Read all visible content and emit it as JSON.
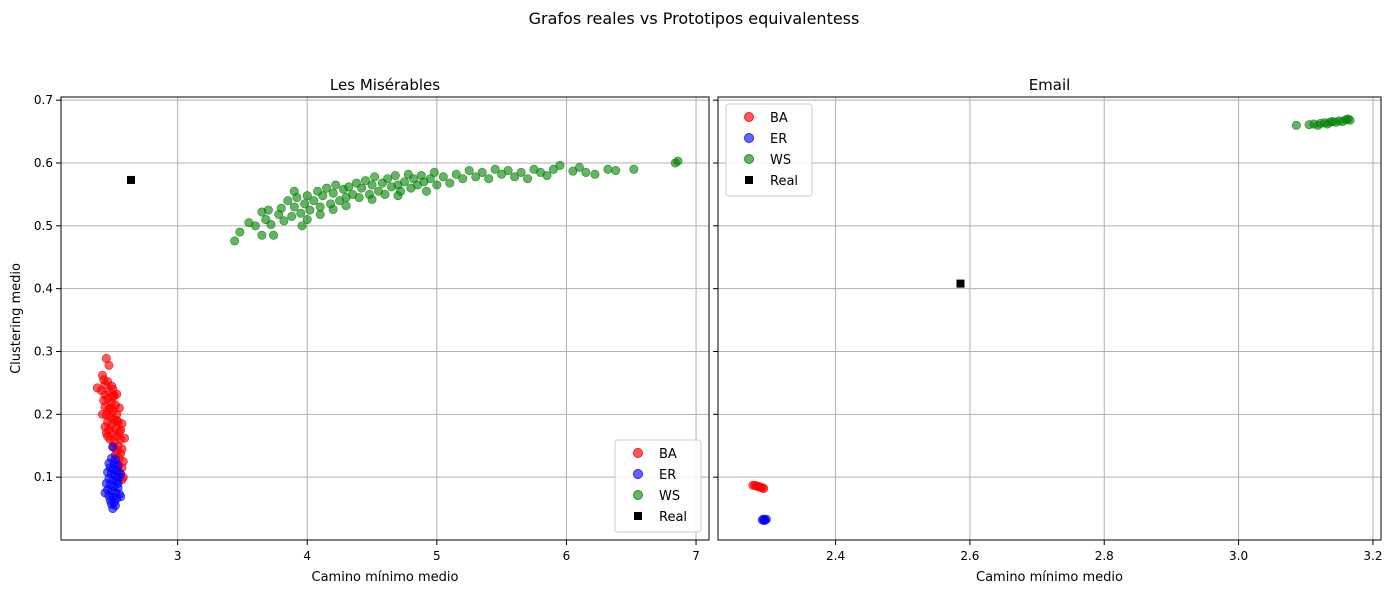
{
  "figure": {
    "suptitle": "Grafos reales vs Prototipos equivalentess"
  },
  "chart_data": [
    {
      "type": "scatter",
      "title": "Les Misérables",
      "xlabel": "Camino mínimo medio",
      "ylabel": "Clustering medio",
      "xlim": [
        2.1,
        7.1
      ],
      "ylim": [
        0.0,
        0.705
      ],
      "xticks": [
        3,
        4,
        5,
        6,
        7
      ],
      "yticks": [
        0.1,
        0.2,
        0.3,
        0.4,
        0.5,
        0.6,
        0.7
      ],
      "grid": true,
      "legend_position": "lower-right",
      "legend": [
        "BA",
        "ER",
        "WS",
        "Real"
      ],
      "series": [
        {
          "name": "BA",
          "color": "#ff0000",
          "marker": "circle",
          "alpha": 0.65,
          "points": [
            [
              2.38,
              0.242
            ],
            [
              2.42,
              0.262
            ],
            [
              2.45,
              0.289
            ],
            [
              2.47,
              0.278
            ],
            [
              2.43,
              0.255
            ],
            [
              2.44,
              0.247
            ],
            [
              2.46,
              0.252
            ],
            [
              2.5,
              0.24
            ],
            [
              2.53,
              0.232
            ],
            [
              2.41,
              0.238
            ],
            [
              2.44,
              0.231
            ],
            [
              2.47,
              0.236
            ],
            [
              2.5,
              0.228
            ],
            [
              2.43,
              0.222
            ],
            [
              2.46,
              0.225
            ],
            [
              2.49,
              0.219
            ],
            [
              2.52,
              0.215
            ],
            [
              2.55,
              0.21
            ],
            [
              2.44,
              0.212
            ],
            [
              2.47,
              0.208
            ],
            [
              2.5,
              0.205
            ],
            [
              2.53,
              0.2
            ],
            [
              2.45,
              0.199
            ],
            [
              2.48,
              0.195
            ],
            [
              2.51,
              0.192
            ],
            [
              2.54,
              0.188
            ],
            [
              2.57,
              0.185
            ],
            [
              2.46,
              0.188
            ],
            [
              2.49,
              0.182
            ],
            [
              2.52,
              0.178
            ],
            [
              2.55,
              0.172
            ],
            [
              2.47,
              0.175
            ],
            [
              2.5,
              0.168
            ],
            [
              2.53,
              0.165
            ],
            [
              2.56,
              0.16
            ],
            [
              2.59,
              0.162
            ],
            [
              2.48,
              0.16
            ],
            [
              2.51,
              0.155
            ],
            [
              2.54,
              0.15
            ],
            [
              2.57,
              0.145
            ],
            [
              2.5,
              0.148
            ],
            [
              2.53,
              0.142
            ],
            [
              2.56,
              0.138
            ],
            [
              2.52,
              0.135
            ],
            [
              2.55,
              0.13
            ],
            [
              2.58,
              0.125
            ],
            [
              2.54,
              0.12
            ],
            [
              2.57,
              0.115
            ],
            [
              2.55,
              0.108
            ],
            [
              2.58,
              0.1
            ],
            [
              2.57,
              0.096
            ],
            [
              2.45,
              0.17
            ],
            [
              2.48,
              0.21
            ],
            [
              2.42,
              0.2
            ],
            [
              2.44,
              0.18
            ],
            [
              2.51,
              0.23
            ],
            [
              2.56,
              0.175
            ],
            [
              2.49,
              0.245
            ],
            [
              2.46,
              0.165
            ],
            [
              2.53,
              0.19
            ]
          ]
        },
        {
          "name": "ER",
          "color": "#0000ff",
          "marker": "circle",
          "alpha": 0.6,
          "points": [
            [
              2.5,
              0.148
            ],
            [
              2.49,
              0.13
            ],
            [
              2.52,
              0.128
            ],
            [
              2.47,
              0.122
            ],
            [
              2.51,
              0.12
            ],
            [
              2.54,
              0.118
            ],
            [
              2.48,
              0.115
            ],
            [
              2.5,
              0.112
            ],
            [
              2.53,
              0.11
            ],
            [
              2.46,
              0.108
            ],
            [
              2.49,
              0.105
            ],
            [
              2.52,
              0.102
            ],
            [
              2.55,
              0.1
            ],
            [
              2.47,
              0.098
            ],
            [
              2.5,
              0.095
            ],
            [
              2.53,
              0.093
            ],
            [
              2.45,
              0.09
            ],
            [
              2.48,
              0.088
            ],
            [
              2.51,
              0.085
            ],
            [
              2.54,
              0.083
            ],
            [
              2.46,
              0.08
            ],
            [
              2.49,
              0.078
            ],
            [
              2.52,
              0.075
            ],
            [
              2.55,
              0.073
            ],
            [
              2.47,
              0.07
            ],
            [
              2.5,
              0.068
            ],
            [
              2.53,
              0.066
            ],
            [
              2.48,
              0.063
            ],
            [
              2.51,
              0.06
            ],
            [
              2.49,
              0.057
            ],
            [
              2.52,
              0.055
            ],
            [
              2.5,
              0.05
            ],
            [
              2.56,
              0.069
            ],
            [
              2.44,
              0.075
            ],
            [
              2.54,
              0.09
            ],
            [
              2.56,
              0.105
            ]
          ]
        },
        {
          "name": "WS",
          "color": "#008000",
          "marker": "circle",
          "alpha": 0.6,
          "points": [
            [
              3.44,
              0.476
            ],
            [
              3.48,
              0.49
            ],
            [
              3.55,
              0.505
            ],
            [
              3.6,
              0.5
            ],
            [
              3.65,
              0.485
            ],
            [
              3.68,
              0.51
            ],
            [
              3.7,
              0.525
            ],
            [
              3.72,
              0.502
            ],
            [
              3.74,
              0.485
            ],
            [
              3.78,
              0.518
            ],
            [
              3.8,
              0.528
            ],
            [
              3.82,
              0.508
            ],
            [
              3.85,
              0.54
            ],
            [
              3.88,
              0.515
            ],
            [
              3.9,
              0.53
            ],
            [
              3.92,
              0.545
            ],
            [
              3.95,
              0.52
            ],
            [
              3.98,
              0.535
            ],
            [
              4.0,
              0.548
            ],
            [
              4.02,
              0.525
            ],
            [
              4.05,
              0.54
            ],
            [
              4.08,
              0.555
            ],
            [
              4.1,
              0.53
            ],
            [
              4.12,
              0.548
            ],
            [
              4.15,
              0.56
            ],
            [
              4.18,
              0.535
            ],
            [
              4.2,
              0.552
            ],
            [
              4.22,
              0.565
            ],
            [
              4.25,
              0.54
            ],
            [
              4.28,
              0.558
            ],
            [
              4.3,
              0.545
            ],
            [
              4.32,
              0.562
            ],
            [
              4.35,
              0.55
            ],
            [
              4.38,
              0.568
            ],
            [
              4.4,
              0.545
            ],
            [
              4.42,
              0.56
            ],
            [
              4.45,
              0.572
            ],
            [
              4.48,
              0.55
            ],
            [
              4.5,
              0.565
            ],
            [
              4.52,
              0.578
            ],
            [
              4.55,
              0.555
            ],
            [
              4.58,
              0.568
            ],
            [
              4.6,
              0.55
            ],
            [
              4.62,
              0.575
            ],
            [
              4.65,
              0.562
            ],
            [
              4.68,
              0.58
            ],
            [
              4.7,
              0.565
            ],
            [
              4.72,
              0.555
            ],
            [
              4.75,
              0.57
            ],
            [
              4.78,
              0.582
            ],
            [
              4.8,
              0.56
            ],
            [
              4.82,
              0.575
            ],
            [
              4.85,
              0.565
            ],
            [
              4.88,
              0.58
            ],
            [
              4.9,
              0.57
            ],
            [
              4.92,
              0.555
            ],
            [
              4.95,
              0.575
            ],
            [
              4.98,
              0.585
            ],
            [
              5.0,
              0.565
            ],
            [
              5.05,
              0.578
            ],
            [
              5.1,
              0.568
            ],
            [
              5.15,
              0.582
            ],
            [
              5.2,
              0.575
            ],
            [
              5.25,
              0.588
            ],
            [
              5.3,
              0.578
            ],
            [
              5.35,
              0.585
            ],
            [
              5.4,
              0.575
            ],
            [
              5.45,
              0.59
            ],
            [
              5.5,
              0.582
            ],
            [
              5.55,
              0.588
            ],
            [
              5.6,
              0.578
            ],
            [
              5.65,
              0.585
            ],
            [
              5.7,
              0.575
            ],
            [
              5.75,
              0.59
            ],
            [
              5.8,
              0.585
            ],
            [
              5.85,
              0.58
            ],
            [
              5.9,
              0.59
            ],
            [
              5.95,
              0.596
            ],
            [
              6.05,
              0.587
            ],
            [
              6.1,
              0.593
            ],
            [
              6.15,
              0.585
            ],
            [
              6.22,
              0.582
            ],
            [
              6.32,
              0.59
            ],
            [
              6.38,
              0.588
            ],
            [
              6.52,
              0.59
            ],
            [
              6.84,
              0.6
            ],
            [
              6.86,
              0.603
            ],
            [
              4.0,
              0.51
            ],
            [
              4.1,
              0.518
            ],
            [
              4.2,
              0.526
            ],
            [
              3.96,
              0.5
            ],
            [
              4.3,
              0.532
            ],
            [
              4.5,
              0.542
            ],
            [
              4.7,
              0.548
            ],
            [
              3.65,
              0.522
            ],
            [
              3.9,
              0.555
            ]
          ]
        },
        {
          "name": "Real",
          "color": "#000000",
          "marker": "square",
          "alpha": 1,
          "points": [
            [
              2.64,
              0.573
            ]
          ]
        }
      ]
    },
    {
      "type": "scatter",
      "title": "Email",
      "xlabel": "Camino mínimo medio",
      "ylabel": "",
      "xlim": [
        2.225,
        3.212
      ],
      "ylim": [
        0.0,
        0.705
      ],
      "xticks": [
        2.4,
        2.6,
        2.8,
        3.0,
        3.2
      ],
      "yticks": [
        0.1,
        0.2,
        0.3,
        0.4,
        0.5,
        0.6,
        0.7
      ],
      "grid": true,
      "legend_position": "upper-left",
      "legend": [
        "BA",
        "ER",
        "WS",
        "Real"
      ],
      "series": [
        {
          "name": "BA",
          "color": "#ff0000",
          "marker": "circle",
          "alpha": 0.65,
          "points": [
            [
              2.277,
              0.087
            ],
            [
              2.282,
              0.086
            ],
            [
              2.285,
              0.085
            ],
            [
              2.288,
              0.084
            ],
            [
              2.291,
              0.083
            ],
            [
              2.293,
              0.082
            ],
            [
              2.28,
              0.087
            ],
            [
              2.286,
              0.085
            ]
          ]
        },
        {
          "name": "ER",
          "color": "#0000ff",
          "marker": "circle",
          "alpha": 0.6,
          "points": [
            [
              2.291,
              0.032
            ],
            [
              2.293,
              0.033
            ],
            [
              2.295,
              0.032
            ],
            [
              2.297,
              0.033
            ],
            [
              2.294,
              0.031
            ]
          ]
        },
        {
          "name": "WS",
          "color": "#008000",
          "marker": "circle",
          "alpha": 0.6,
          "points": [
            [
              3.086,
              0.66
            ],
            [
              3.105,
              0.661
            ],
            [
              3.112,
              0.662
            ],
            [
              3.118,
              0.66
            ],
            [
              3.122,
              0.663
            ],
            [
              3.128,
              0.664
            ],
            [
              3.132,
              0.662
            ],
            [
              3.136,
              0.665
            ],
            [
              3.14,
              0.666
            ],
            [
              3.145,
              0.665
            ],
            [
              3.15,
              0.667
            ],
            [
              3.155,
              0.666
            ],
            [
              3.16,
              0.669
            ],
            [
              3.163,
              0.67
            ],
            [
              3.166,
              0.668
            ]
          ]
        },
        {
          "name": "Real",
          "color": "#000000",
          "marker": "square",
          "alpha": 1,
          "points": [
            [
              2.586,
              0.408
            ]
          ]
        }
      ]
    }
  ]
}
